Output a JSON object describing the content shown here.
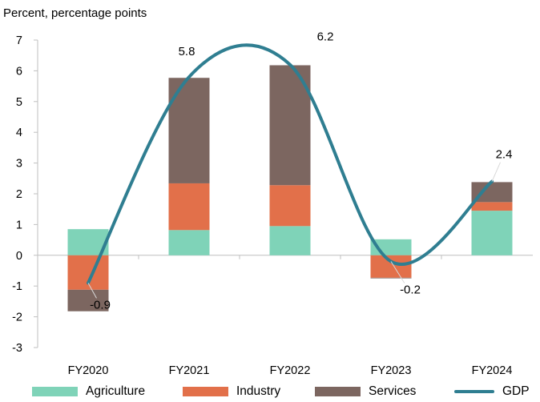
{
  "chart_data": {
    "type": "bar",
    "stacked": true,
    "ylabel": "Percent, percentage points",
    "ylim": [
      -3,
      7
    ],
    "yticks": [
      -3,
      -2,
      -1,
      0,
      1,
      2,
      3,
      4,
      5,
      6,
      7
    ],
    "categories": [
      "FY2020",
      "FY2021",
      "FY2022",
      "FY2023",
      "FY2024"
    ],
    "series": [
      {
        "name": "Agriculture",
        "type": "bar",
        "color": "#7fd3b8",
        "values": [
          0.85,
          0.82,
          0.95,
          0.52,
          1.45
        ]
      },
      {
        "name": "Industry",
        "type": "bar",
        "color": "#e2704a",
        "values": [
          -1.12,
          1.52,
          1.33,
          -0.73,
          0.28
        ]
      },
      {
        "name": "Services",
        "type": "bar",
        "color": "#7c6660",
        "values": [
          -0.7,
          3.43,
          3.9,
          -0.02,
          0.65
        ]
      },
      {
        "name": "GDP",
        "type": "line",
        "color": "#2f7e91",
        "values": [
          -0.9,
          5.8,
          6.2,
          -0.2,
          2.4
        ]
      }
    ],
    "data_labels": [
      "-0.9",
      "5.8",
      "6.2",
      "-0.2",
      "2.4"
    ],
    "grid": false,
    "legend_position": "bottom"
  }
}
